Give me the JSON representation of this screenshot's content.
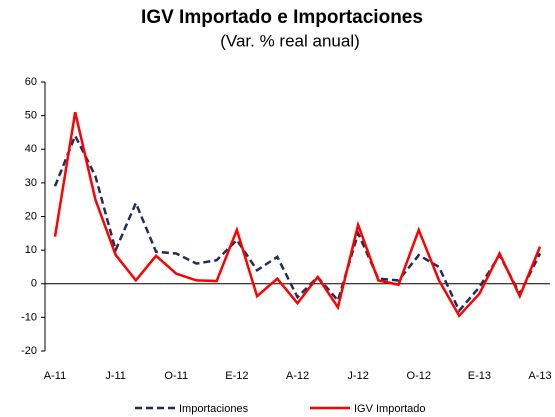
{
  "chart_data": {
    "type": "line",
    "title": "IGV Importado e Importaciones",
    "subtitle": "(Var. % real anual)",
    "categories": [
      "A-11",
      null,
      null,
      "J-11",
      null,
      null,
      "O-11",
      null,
      null,
      "E-12",
      null,
      null,
      "A-12",
      null,
      null,
      "J-12",
      null,
      null,
      "O-12",
      null,
      null,
      "E-13",
      null,
      null,
      "A-13"
    ],
    "series": [
      {
        "name": "Importaciones",
        "color": "#1f2d5c",
        "dash": true,
        "values": [
          29,
          44,
          32,
          10,
          24,
          9.5,
          9,
          6,
          7,
          13,
          4,
          8,
          -4,
          2,
          -5,
          15,
          1.5,
          1,
          8.5,
          5,
          -8,
          -1,
          8.5,
          -3,
          9
        ]
      },
      {
        "name": "IGV Importado",
        "color": "#ff0000",
        "dash": false,
        "values": [
          14,
          51,
          25,
          8.6,
          1,
          8.3,
          3,
          1,
          0.8,
          16,
          -3.7,
          1.5,
          -5.8,
          2,
          -7,
          17.5,
          1,
          -0.3,
          16,
          1,
          -9.5,
          -3,
          9,
          -3.7,
          11
        ]
      }
    ],
    "ylim": [
      -20,
      60
    ],
    "yticks": [
      -20,
      -10,
      0,
      10,
      20,
      30,
      40,
      50,
      60
    ],
    "legend": "bottom"
  }
}
